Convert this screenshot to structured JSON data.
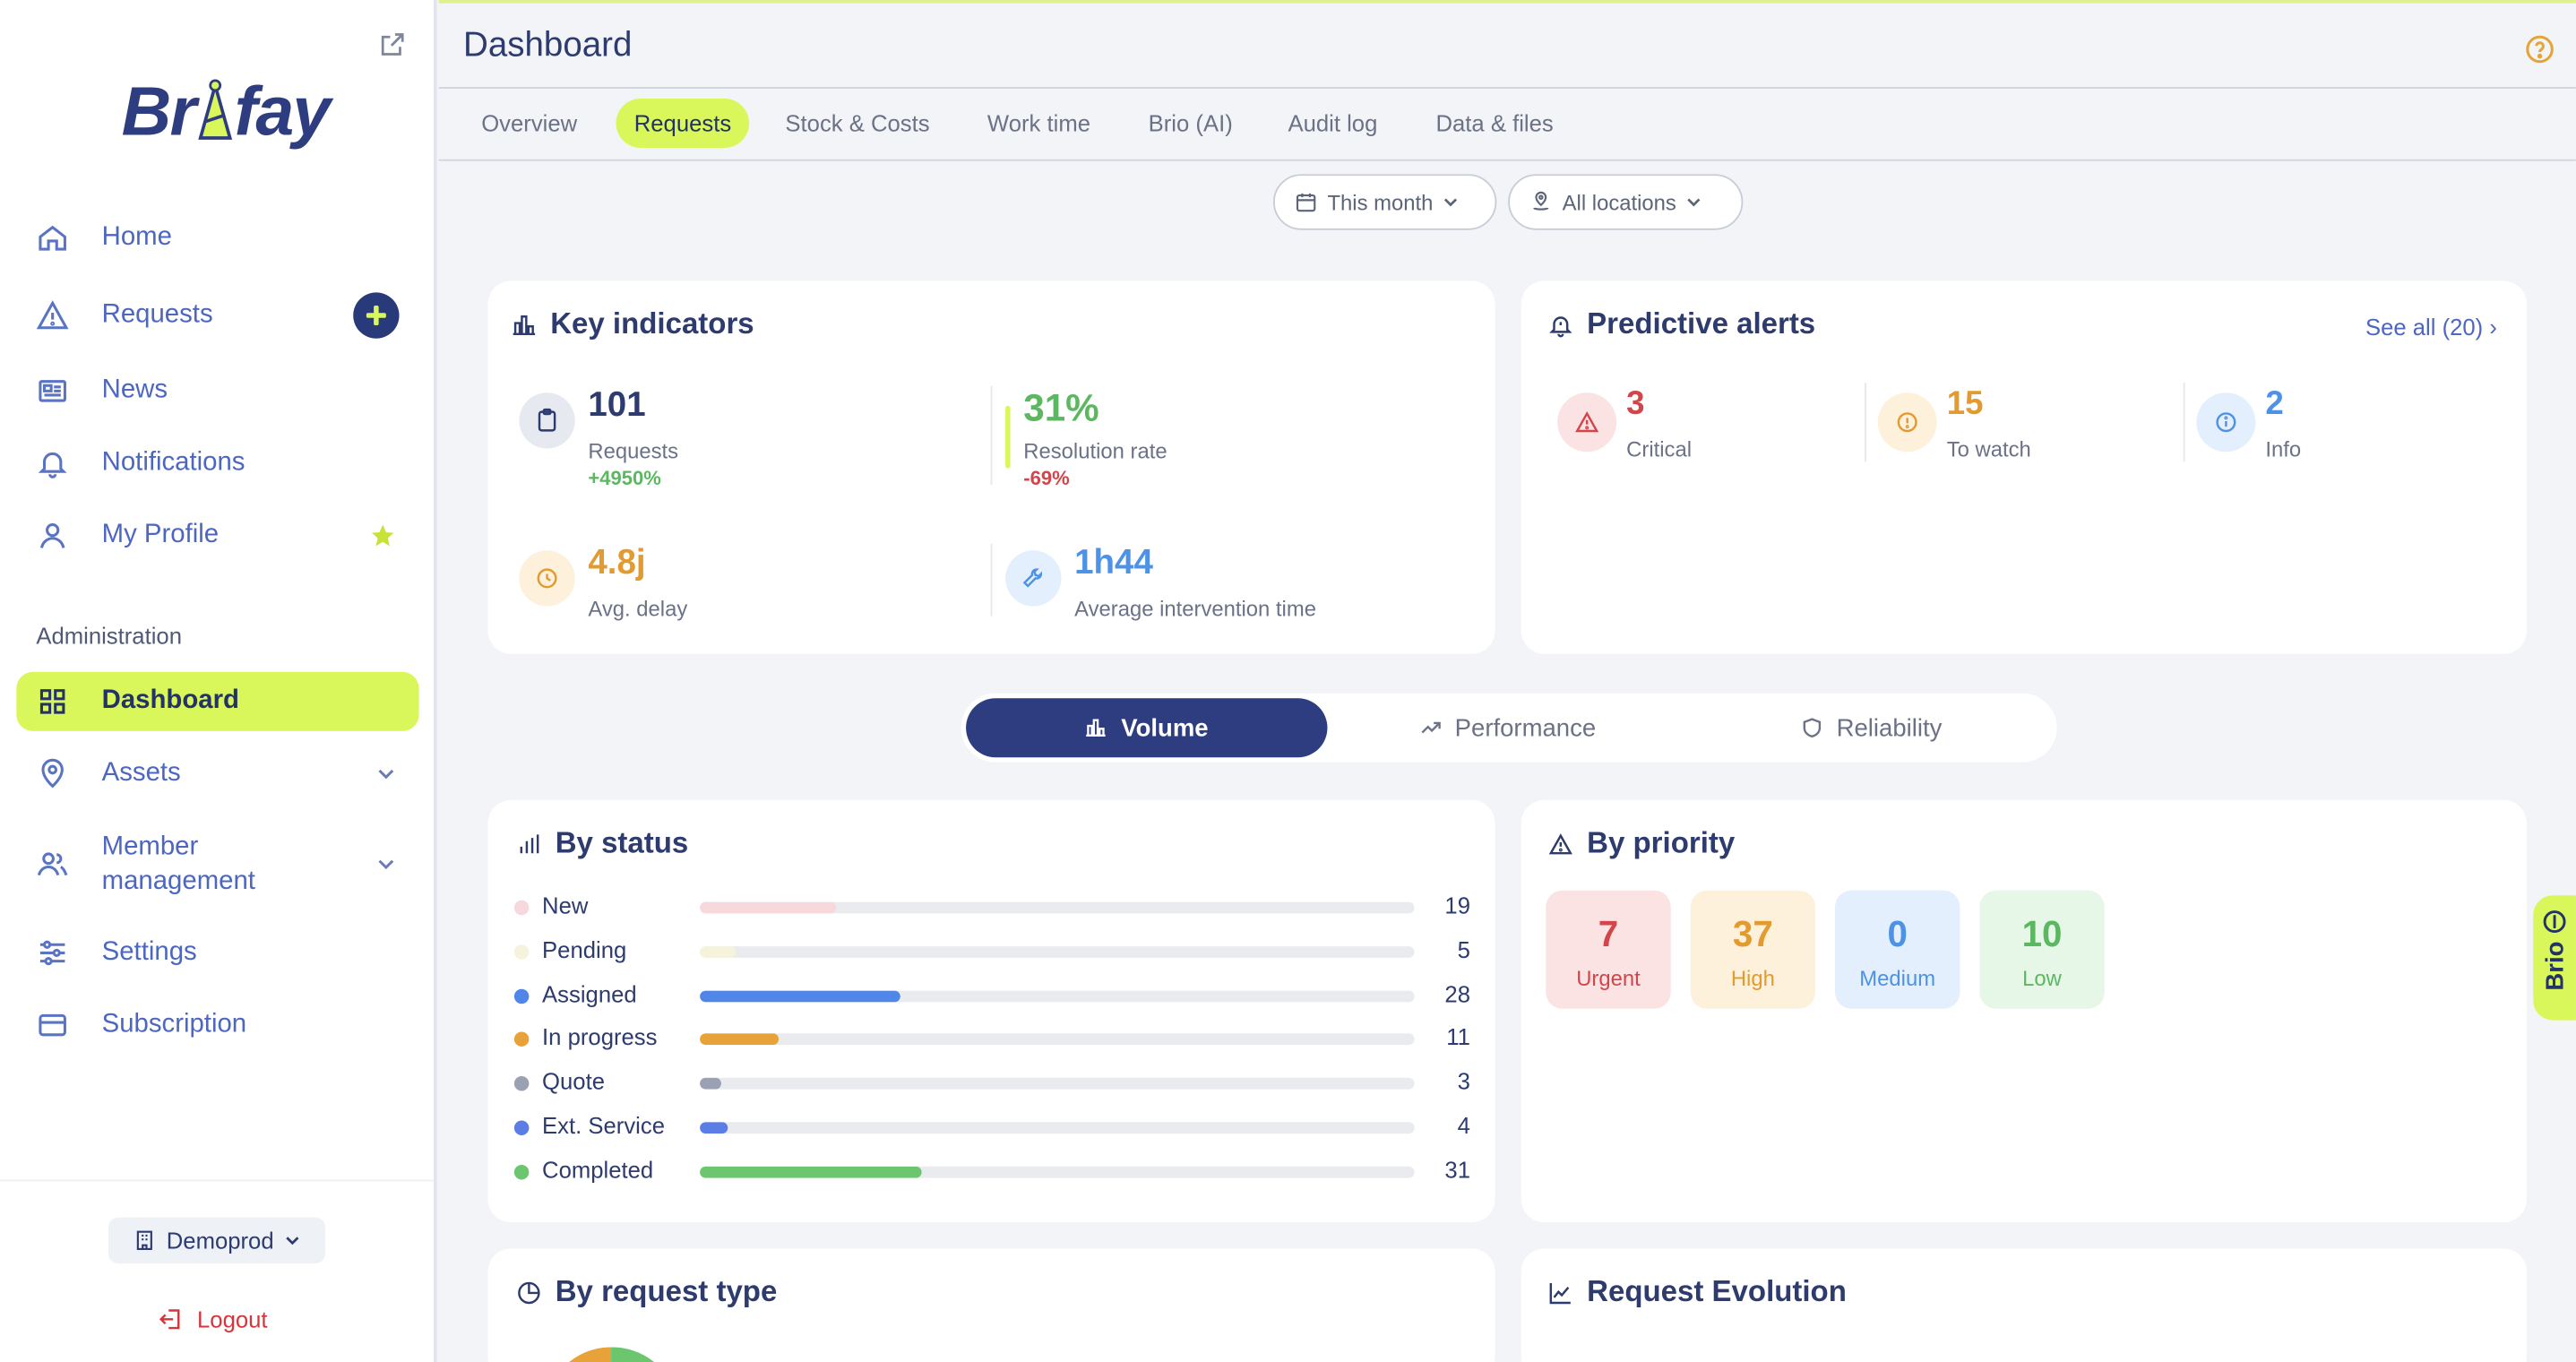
{
  "sidebar": {
    "logo": "Brifay",
    "nav": [
      {
        "label": "Home"
      },
      {
        "label": "Requests"
      },
      {
        "label": "News"
      },
      {
        "label": "Notifications"
      },
      {
        "label": "My Profile"
      }
    ],
    "admin_section": "Administration",
    "admin_nav": [
      {
        "label": "Dashboard"
      },
      {
        "label": "Assets"
      },
      {
        "label": "Member",
        "label2": "management"
      },
      {
        "label": "Settings"
      },
      {
        "label": "Subscription"
      }
    ],
    "org": "Demoprod",
    "logout": "Logout"
  },
  "header": {
    "title": "Dashboard"
  },
  "tabs": [
    {
      "label": "Overview"
    },
    {
      "label": "Requests",
      "active": true
    },
    {
      "label": "Stock & Costs"
    },
    {
      "label": "Work time"
    },
    {
      "label": "Brio (AI)"
    },
    {
      "label": "Audit log"
    },
    {
      "label": "Data & files"
    }
  ],
  "filters": {
    "period": "This month",
    "location": "All locations"
  },
  "key_indicators": {
    "title": "Key indicators",
    "requests": {
      "value": "101",
      "label": "Requests",
      "delta": "+4950%"
    },
    "resolution": {
      "value": "31%",
      "label": "Resolution rate",
      "delta": "-69%"
    },
    "delay": {
      "value": "4.8j",
      "label": "Avg. delay"
    },
    "intervention": {
      "value": "1h44",
      "label": "Average intervention time"
    }
  },
  "predictive_alerts": {
    "title": "Predictive alerts",
    "see_all": "See all (20)",
    "critical": {
      "value": "3",
      "label": "Critical"
    },
    "watch": {
      "value": "15",
      "label": "To watch"
    },
    "info": {
      "value": "2",
      "label": "Info"
    }
  },
  "view_switch": {
    "volume": "Volume",
    "performance": "Performance",
    "reliability": "Reliability"
  },
  "by_status": {
    "title": "By status",
    "max": 100,
    "rows": [
      {
        "label": "New",
        "value": 19,
        "display": "19",
        "color": "#f7d8dc"
      },
      {
        "label": "Pending",
        "value": 5,
        "display": "5",
        "color": "#f5f3dc"
      },
      {
        "label": "Assigned",
        "value": 28,
        "display": "28",
        "color": "#4f86e8"
      },
      {
        "label": "In progress",
        "value": 11,
        "display": "11",
        "color": "#e8a23a"
      },
      {
        "label": "Quote",
        "value": 3,
        "display": "3",
        "color": "#9aa1b2"
      },
      {
        "label": "Ext. Service",
        "value": 4,
        "display": "4",
        "color": "#5b7de6"
      },
      {
        "label": "Completed",
        "value": 31,
        "display": "31",
        "color": "#6bc66e"
      }
    ]
  },
  "by_priority": {
    "title": "By priority",
    "items": [
      {
        "value": "7",
        "label": "Urgent",
        "bg": "#fbe3e4",
        "color": "#d3454a"
      },
      {
        "value": "37",
        "label": "High",
        "bg": "#fdf1dc",
        "color": "#e39a2e"
      },
      {
        "value": "0",
        "label": "Medium",
        "bg": "#e3effc",
        "color": "#4d92e6"
      },
      {
        "value": "10",
        "label": "Low",
        "bg": "#e6f6e7",
        "color": "#5cb860"
      }
    ]
  },
  "by_request_type": {
    "title": "By request type"
  },
  "request_evolution": {
    "title": "Request Evolution"
  },
  "brio": {
    "label": "Brio"
  }
}
